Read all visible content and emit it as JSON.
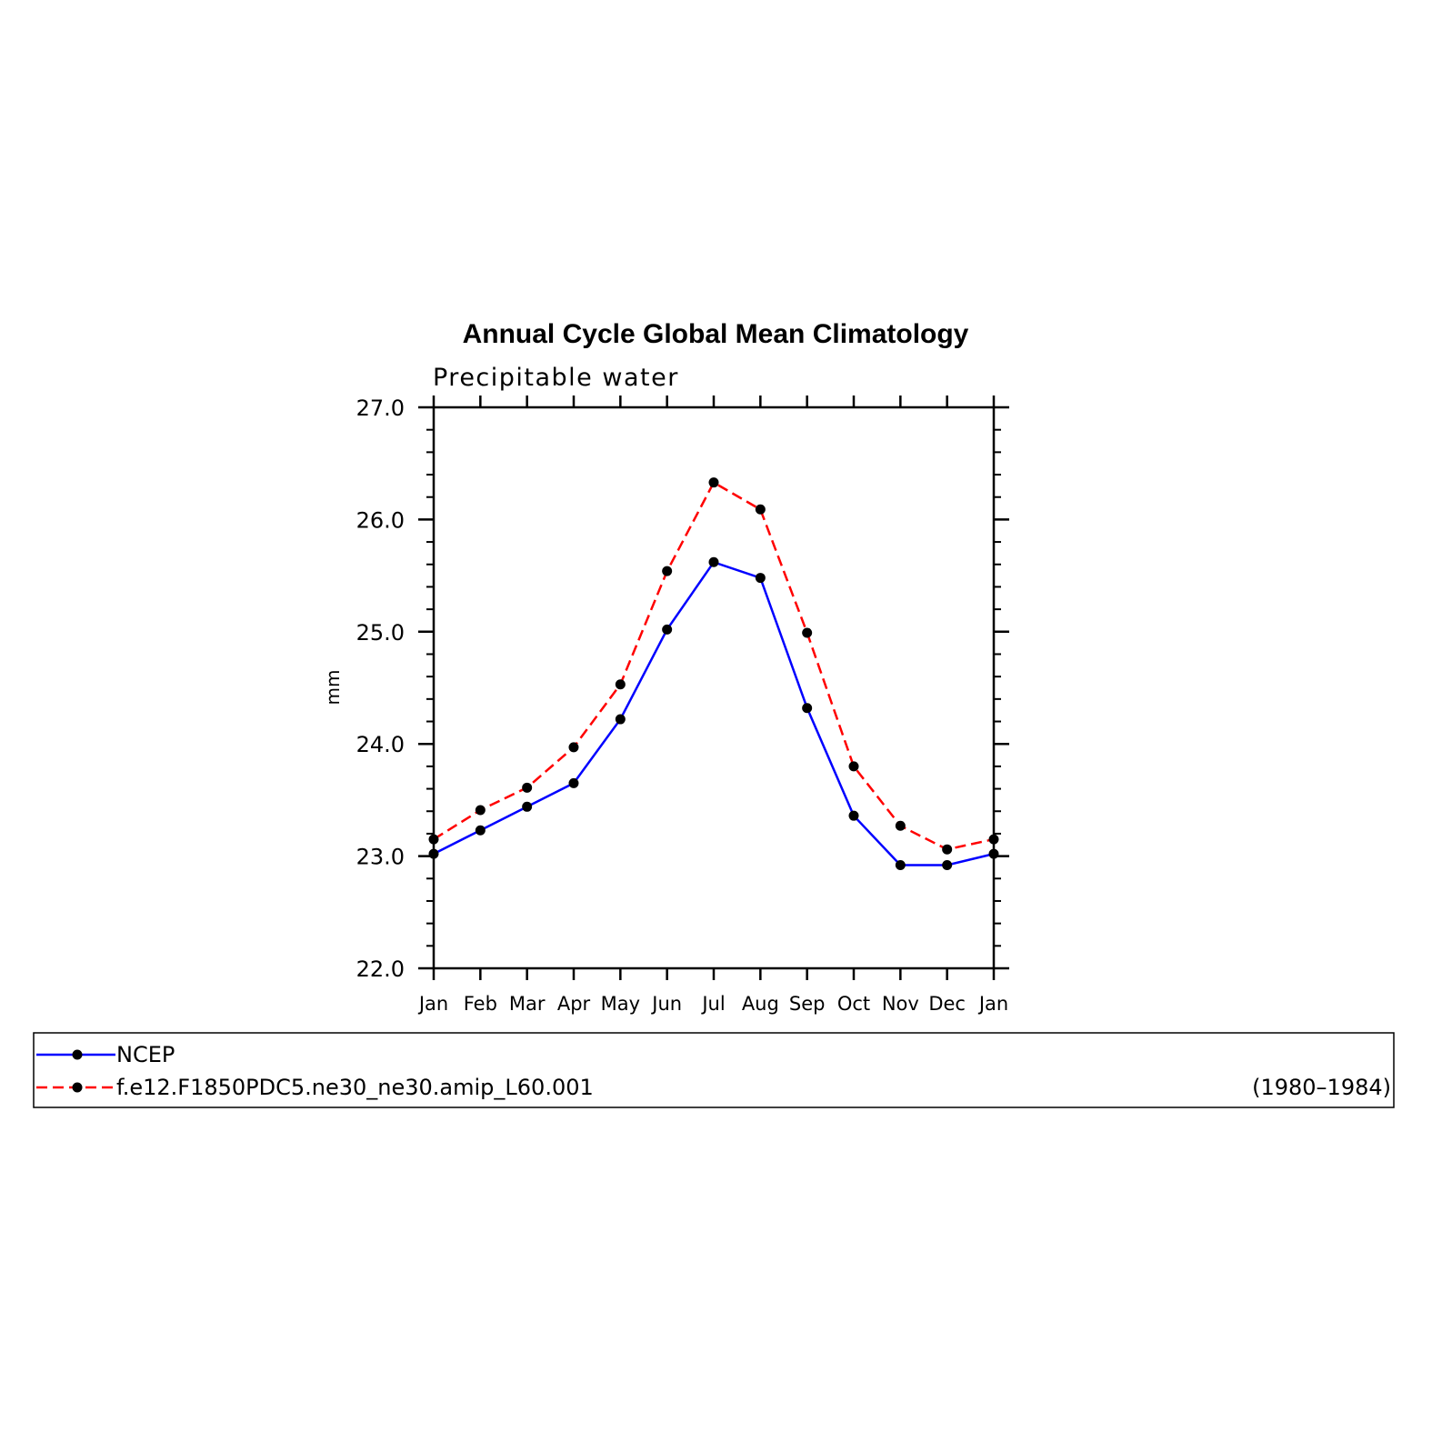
{
  "chart_data": {
    "type": "line",
    "title": "Annual Cycle Global Mean Climatology",
    "subtitle": "Precipitable water",
    "ylabel": "mm",
    "xlabel": "",
    "categories": [
      "Jan",
      "Feb",
      "Mar",
      "Apr",
      "May",
      "Jun",
      "Jul",
      "Aug",
      "Sep",
      "Oct",
      "Nov",
      "Dec",
      "Jan"
    ],
    "ylim": [
      22.0,
      27.0
    ],
    "yticks": [
      "22.0",
      "23.0",
      "24.0",
      "25.0",
      "26.0",
      "27.0"
    ],
    "series": [
      {
        "name": "NCEP",
        "color": "#0000ff",
        "dash": "solid",
        "values": [
          23.02,
          23.23,
          23.44,
          23.65,
          24.22,
          25.02,
          25.62,
          25.48,
          24.32,
          23.36,
          22.92,
          22.92,
          23.02
        ]
      },
      {
        "name": "f.e12.F1850PDC5.ne30_ne30.amip_L60.001",
        "color": "#ff0000",
        "dash": "dashed",
        "values": [
          23.15,
          23.41,
          23.61,
          23.97,
          24.53,
          25.54,
          26.33,
          26.09,
          24.99,
          23.8,
          23.27,
          23.06,
          23.15
        ]
      }
    ],
    "legend": {
      "position": "bottom",
      "period": "(1980–1984)"
    },
    "grid": false
  }
}
